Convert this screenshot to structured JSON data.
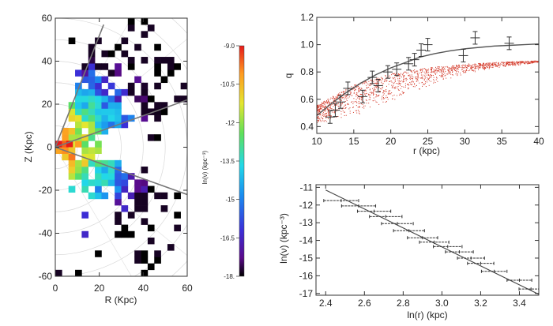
{
  "chart_data": [
    {
      "id": "density-map",
      "type": "heatmap",
      "title": "",
      "xlabel": "R (Kpc)",
      "ylabel": "Z (Kpc)",
      "xlim": [
        0,
        60
      ],
      "ylim": [
        -60,
        60
      ],
      "xticks": [
        "0",
        "20",
        "40",
        "60"
      ],
      "yticks": [
        "60",
        "40",
        "20",
        "0",
        "-20",
        "-40",
        "-60"
      ],
      "colorbar": {
        "label": "ln(ν) (kpc⁻³)",
        "range": [
          -18.0,
          -9.0
        ],
        "ticks": [
          "-9.0",
          "-10.5",
          "-12",
          "-13.5",
          "-15",
          "-16.5",
          "-18."
        ]
      },
      "guide_lines": [
        {
          "name": "upper-steep",
          "from": [
            0,
            0
          ],
          "to": [
            22,
            57
          ]
        },
        {
          "name": "upper-shallow",
          "from": [
            0,
            0
          ],
          "to": [
            60,
            22
          ]
        },
        {
          "name": "lower-shallow",
          "from": [
            0,
            0
          ],
          "to": [
            60,
            -22
          ]
        }
      ],
      "circle_radii_kpc": [
        10,
        20,
        30,
        40,
        50,
        60,
        70,
        80
      ]
    },
    {
      "id": "flattening-profile",
      "type": "scatter",
      "title": "",
      "xlabel": "r (kpc)",
      "ylabel": "q",
      "xlim": [
        10,
        40
      ],
      "ylim": [
        0.35,
        1.2
      ],
      "xticks": [
        "10",
        "15",
        "20",
        "25",
        "30",
        "35",
        "40"
      ],
      "yticks": [
        "1.2",
        "1.0",
        "0.8",
        "0.6",
        "0.4"
      ],
      "series": [
        {
          "name": "q measurements",
          "x": [
            11.8,
            12.5,
            13.2,
            14.2,
            16.2,
            17.5,
            18.3,
            19.6,
            20.8,
            22.4,
            23.2,
            24.1,
            25.0,
            29.8,
            31.4,
            36.0
          ],
          "y": [
            0.47,
            0.52,
            0.58,
            0.68,
            0.62,
            0.76,
            0.7,
            0.8,
            0.82,
            0.86,
            0.89,
            0.96,
            1.0,
            0.92,
            1.05,
            1.01
          ]
        },
        {
          "name": "model curve",
          "x": [
            10,
            12,
            14,
            16,
            18,
            20,
            22,
            24,
            26,
            28,
            30,
            32,
            34,
            36,
            38,
            40
          ],
          "y": [
            0.48,
            0.57,
            0.65,
            0.72,
            0.78,
            0.83,
            0.87,
            0.91,
            0.935,
            0.955,
            0.97,
            0.98,
            0.99,
            0.995,
            1.0,
            1.005
          ]
        }
      ],
      "simulated_cloud": {
        "name": "red point cloud",
        "color": "#d43a2a",
        "upper_edge": {
          "x": [
            10,
            15,
            20,
            25,
            30,
            35,
            40
          ],
          "y": [
            0.56,
            0.71,
            0.79,
            0.835,
            0.86,
            0.875,
            0.885
          ]
        },
        "lower_edge": {
          "x": [
            10,
            15,
            20,
            25,
            30,
            35,
            40
          ],
          "y": [
            0.42,
            0.48,
            0.58,
            0.7,
            0.79,
            0.84,
            0.87
          ]
        }
      }
    },
    {
      "id": "density-profile",
      "type": "scatter",
      "title": "",
      "xlabel": "ln(r) (kpc)",
      "ylabel": "ln(ν) (kpc⁻³)",
      "xlim": [
        2.35,
        3.5
      ],
      "ylim": [
        -17.1,
        -10.85
      ],
      "xticks": [
        "2.4",
        "2.6",
        "2.8",
        "3.0",
        "3.2",
        "3.4"
      ],
      "yticks": [
        "-11",
        "-12",
        "-13",
        "-14",
        "-15",
        "-16",
        "-17"
      ],
      "series": [
        {
          "name": "measured density",
          "x": [
            2.48,
            2.57,
            2.65,
            2.71,
            2.77,
            2.83,
            2.9,
            2.96,
            3.03,
            3.09,
            3.15,
            3.2,
            3.27,
            3.4,
            3.46
          ],
          "y": [
            -11.75,
            -12.05,
            -12.35,
            -12.65,
            -13.05,
            -13.45,
            -13.85,
            -14.1,
            -14.35,
            -14.65,
            -15.0,
            -15.3,
            -15.75,
            -16.25,
            -16.75
          ]
        },
        {
          "name": "power-law fit",
          "x": [
            2.4,
            3.5
          ],
          "y": [
            -11.15,
            -17.05
          ]
        }
      ]
    }
  ]
}
